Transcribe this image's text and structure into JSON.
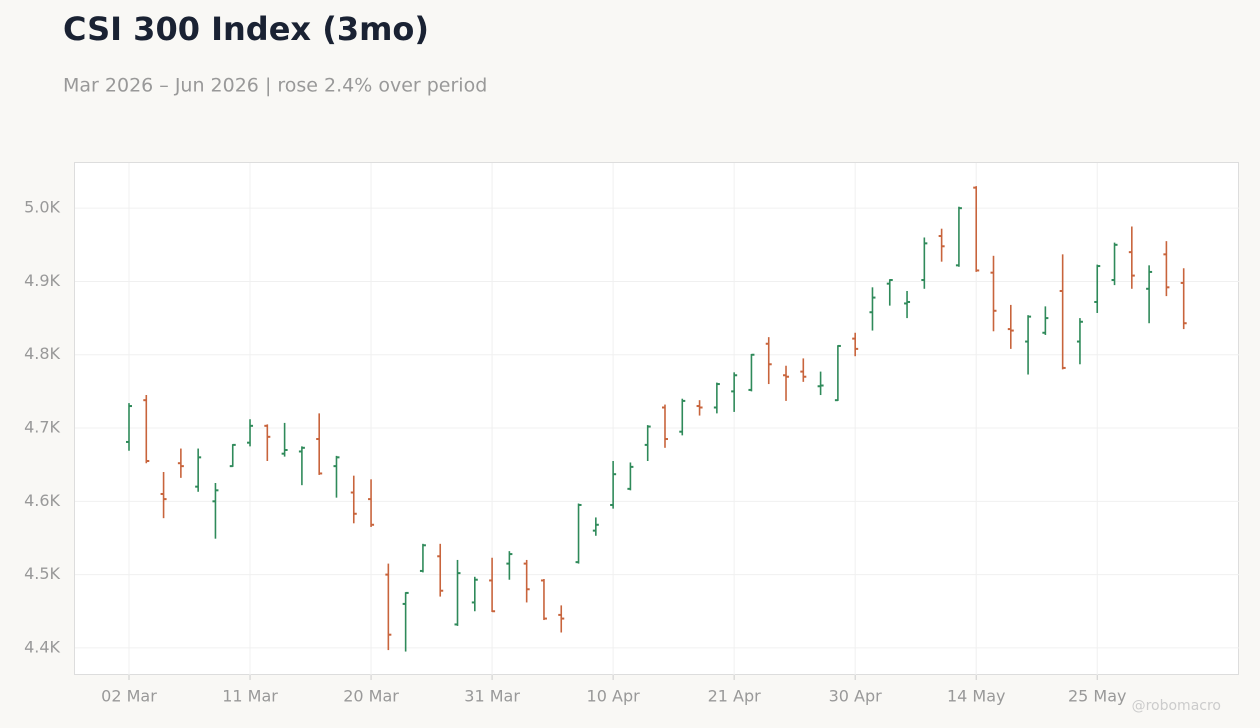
{
  "chart_data": {
    "type": "ohlc",
    "title": "CSI 300 Index (3mo)",
    "subtitle": "Mar 2026 – Jun 2026 | rose 2.4% over period",
    "watermark": "@robomacro",
    "categories": [
      "02 Mar",
      null,
      null,
      null,
      null,
      null,
      null,
      "11 Mar",
      null,
      null,
      null,
      null,
      null,
      null,
      "20 Mar",
      null,
      null,
      null,
      null,
      null,
      null,
      "31 Mar",
      null,
      null,
      null,
      null,
      null,
      null,
      "10 Apr",
      null,
      null,
      null,
      null,
      null,
      null,
      "21 Apr",
      null,
      null,
      null,
      null,
      null,
      null,
      "30 Apr",
      null,
      null,
      null,
      null,
      null,
      null,
      "14 May",
      null,
      null,
      null,
      null,
      null,
      null,
      "25 May",
      null,
      null,
      null,
      null,
      null
    ],
    "open": [
      4681,
      4738,
      4610,
      4652,
      4620,
      4600,
      4648,
      4680,
      4703,
      4665,
      4668,
      4685,
      4648,
      4612,
      4603,
      4500,
      4460,
      4505,
      4525,
      4432,
      4462,
      4492,
      4515,
      4515,
      4492,
      4445,
      4517,
      4560,
      4595,
      4617,
      4677,
      4728,
      4695,
      4730,
      4728,
      4750,
      4752,
      4815,
      4772,
      4777,
      4757,
      4738,
      4822,
      4858,
      4897,
      4870,
      4902,
      4962,
      4922,
      5028,
      4912,
      4835,
      4818,
      4830,
      4887,
      4818,
      4872,
      4902,
      4940,
      4890,
      4937,
      4898
    ],
    "high": [
      4734,
      4745,
      4640,
      4672,
      4672,
      4625,
      4678,
      4712,
      4705,
      4707,
      4675,
      4720,
      4662,
      4635,
      4630,
      4515,
      4476,
      4542,
      4542,
      4520,
      4497,
      4523,
      4532,
      4520,
      4494,
      4458,
      4597,
      4578,
      4655,
      4653,
      4704,
      4732,
      4740,
      4738,
      4762,
      4776,
      4801,
      4824,
      4785,
      4795,
      4777,
      4813,
      4830,
      4892,
      4903,
      4887,
      4960,
      4972,
      5002,
      5030,
      4935,
      4868,
      4854,
      4866,
      4937,
      4850,
      4923,
      4953,
      4975,
      4922,
      4955,
      4918
    ],
    "low": [
      4669,
      4652,
      4577,
      4632,
      4613,
      4549,
      4647,
      4675,
      4655,
      4661,
      4622,
      4636,
      4605,
      4570,
      4565,
      4397,
      4395,
      4503,
      4470,
      4430,
      4450,
      4449,
      4493,
      4462,
      4438,
      4421,
      4515,
      4553,
      4590,
      4615,
      4655,
      4673,
      4690,
      4717,
      4720,
      4722,
      4750,
      4760,
      4737,
      4763,
      4745,
      4737,
      4798,
      4833,
      4867,
      4850,
      4890,
      4927,
      4920,
      4913,
      4832,
      4808,
      4773,
      4827,
      4780,
      4787,
      4857,
      4895,
      4890,
      4843,
      4880,
      4835
    ],
    "close": [
      4730,
      4655,
      4603,
      4648,
      4660,
      4615,
      4677,
      4703,
      4688,
      4670,
      4673,
      4638,
      4660,
      4583,
      4568,
      4418,
      4475,
      4540,
      4478,
      4502,
      4493,
      4450,
      4528,
      4480,
      4440,
      4440,
      4595,
      4568,
      4637,
      4647,
      4702,
      4685,
      4737,
      4728,
      4760,
      4772,
      4800,
      4787,
      4770,
      4770,
      4758,
      4812,
      4808,
      4878,
      4902,
      4872,
      4952,
      4948,
      5000,
      4915,
      4860,
      4833,
      4852,
      4850,
      4782,
      4845,
      4921,
      4950,
      4908,
      4913,
      4892,
      4843
    ],
    "up_color": "#2f8a5a",
    "down_color": "#c8643c",
    "ylim": [
      4363,
      5063
    ],
    "yticks": [
      {
        "value": 4400,
        "label": "4.4K"
      },
      {
        "value": 4500,
        "label": "4.5K"
      },
      {
        "value": 4600,
        "label": "4.6K"
      },
      {
        "value": 4700,
        "label": "4.7K"
      },
      {
        "value": 4800,
        "label": "4.8K"
      },
      {
        "value": 4900,
        "label": "4.9K"
      },
      {
        "value": 5000,
        "label": "5.0K"
      }
    ],
    "grid": true
  }
}
